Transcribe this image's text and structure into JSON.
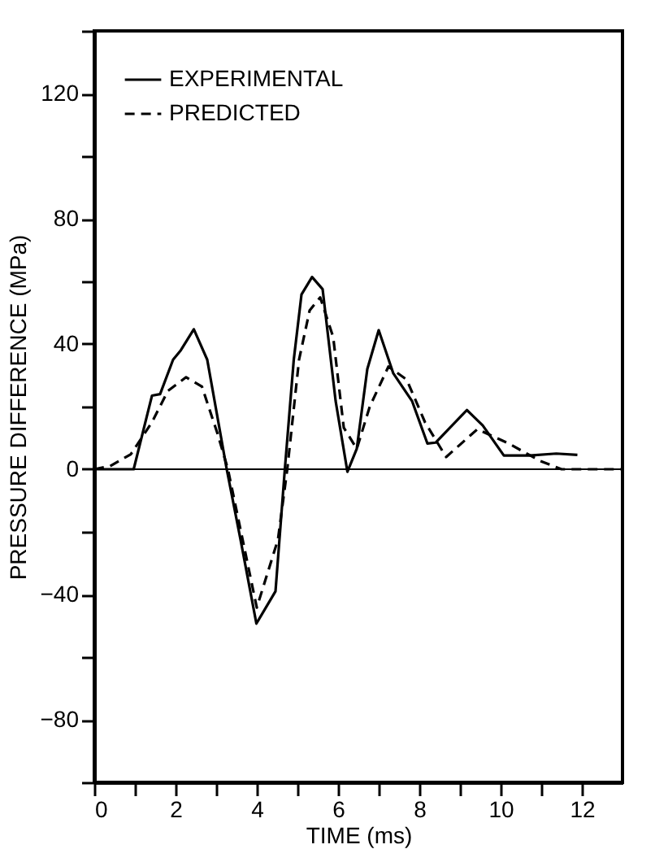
{
  "chart_data": {
    "type": "line",
    "xlabel": "TIME (ms)",
    "ylabel": "PRESSURE  DIFFERENCE  (MPa)",
    "xlim": [
      0,
      13
    ],
    "ylim": [
      -100,
      140
    ],
    "xticks": [
      0,
      {
        "value": 1,
        "label": null
      },
      2,
      {
        "value": 3,
        "label": null
      },
      4,
      {
        "value": 5,
        "label": null
      },
      6,
      {
        "value": 7,
        "label": null
      },
      8,
      {
        "value": 9,
        "label": null
      },
      10,
      {
        "value": 11,
        "label": null
      },
      12
    ],
    "yticks": [
      {
        "value": -100,
        "label": null
      },
      -80,
      {
        "value": -60,
        "label": null
      },
      -40,
      {
        "value": -20,
        "label": null
      },
      0,
      {
        "value": 20,
        "label": null
      },
      40,
      {
        "value": 60,
        "label": null
      },
      80,
      {
        "value": 100,
        "label": null
      },
      120,
      {
        "value": 140,
        "label": null
      }
    ],
    "legend": "top left",
    "grid": false,
    "marker": "none",
    "ref_lines": [
      {
        "axis": "y",
        "value": 0,
        "color": "#000000"
      }
    ],
    "series": [
      {
        "name": "EXPERIMENTAL",
        "color": "#000000",
        "line_style": "solid",
        "x": [
          0,
          0.4,
          0.97,
          1.42,
          1.62,
          1.94,
          2.13,
          2.45,
          2.78,
          3.26,
          3.6,
          3.99,
          4.46,
          4.69,
          4.91,
          5.1,
          5.36,
          5.62,
          5.94,
          6.23,
          6.46,
          6.72,
          7.0,
          7.36,
          7.82,
          8.2,
          8.4,
          9.17,
          9.56,
          10.08,
          10.72,
          11.37,
          11.89
        ],
        "values": [
          0,
          0,
          0,
          23.5,
          24,
          35,
          38,
          44.7,
          35,
          0,
          -22.5,
          -49.3,
          -39,
          0,
          35,
          55.8,
          61.4,
          57.5,
          21.8,
          -0.8,
          6.5,
          32,
          44.4,
          30.6,
          21.8,
          8.2,
          8.5,
          18.9,
          14,
          4.4,
          4.4,
          5,
          4.6
        ]
      },
      {
        "name": "PREDICTED",
        "color": "#000000",
        "line_style": "dashed",
        "x": [
          0,
          0.39,
          0.9,
          1.42,
          1.81,
          2.26,
          2.65,
          3.03,
          3.29,
          4.0,
          4.52,
          4.75,
          5.04,
          5.3,
          5.56,
          5.88,
          6.14,
          6.46,
          6.78,
          7.24,
          7.69,
          8.14,
          8.66,
          9.43,
          10.2,
          10.98,
          11.5,
          13
        ],
        "values": [
          0,
          1,
          4.8,
          15,
          25,
          29.4,
          26.4,
          11.5,
          0,
          -44.2,
          -22.5,
          0,
          35,
          50.7,
          54.9,
          42.2,
          13.3,
          6.5,
          20,
          32.8,
          28.6,
          15,
          3.9,
          12.8,
          8.2,
          2.6,
          0,
          0
        ]
      }
    ]
  }
}
